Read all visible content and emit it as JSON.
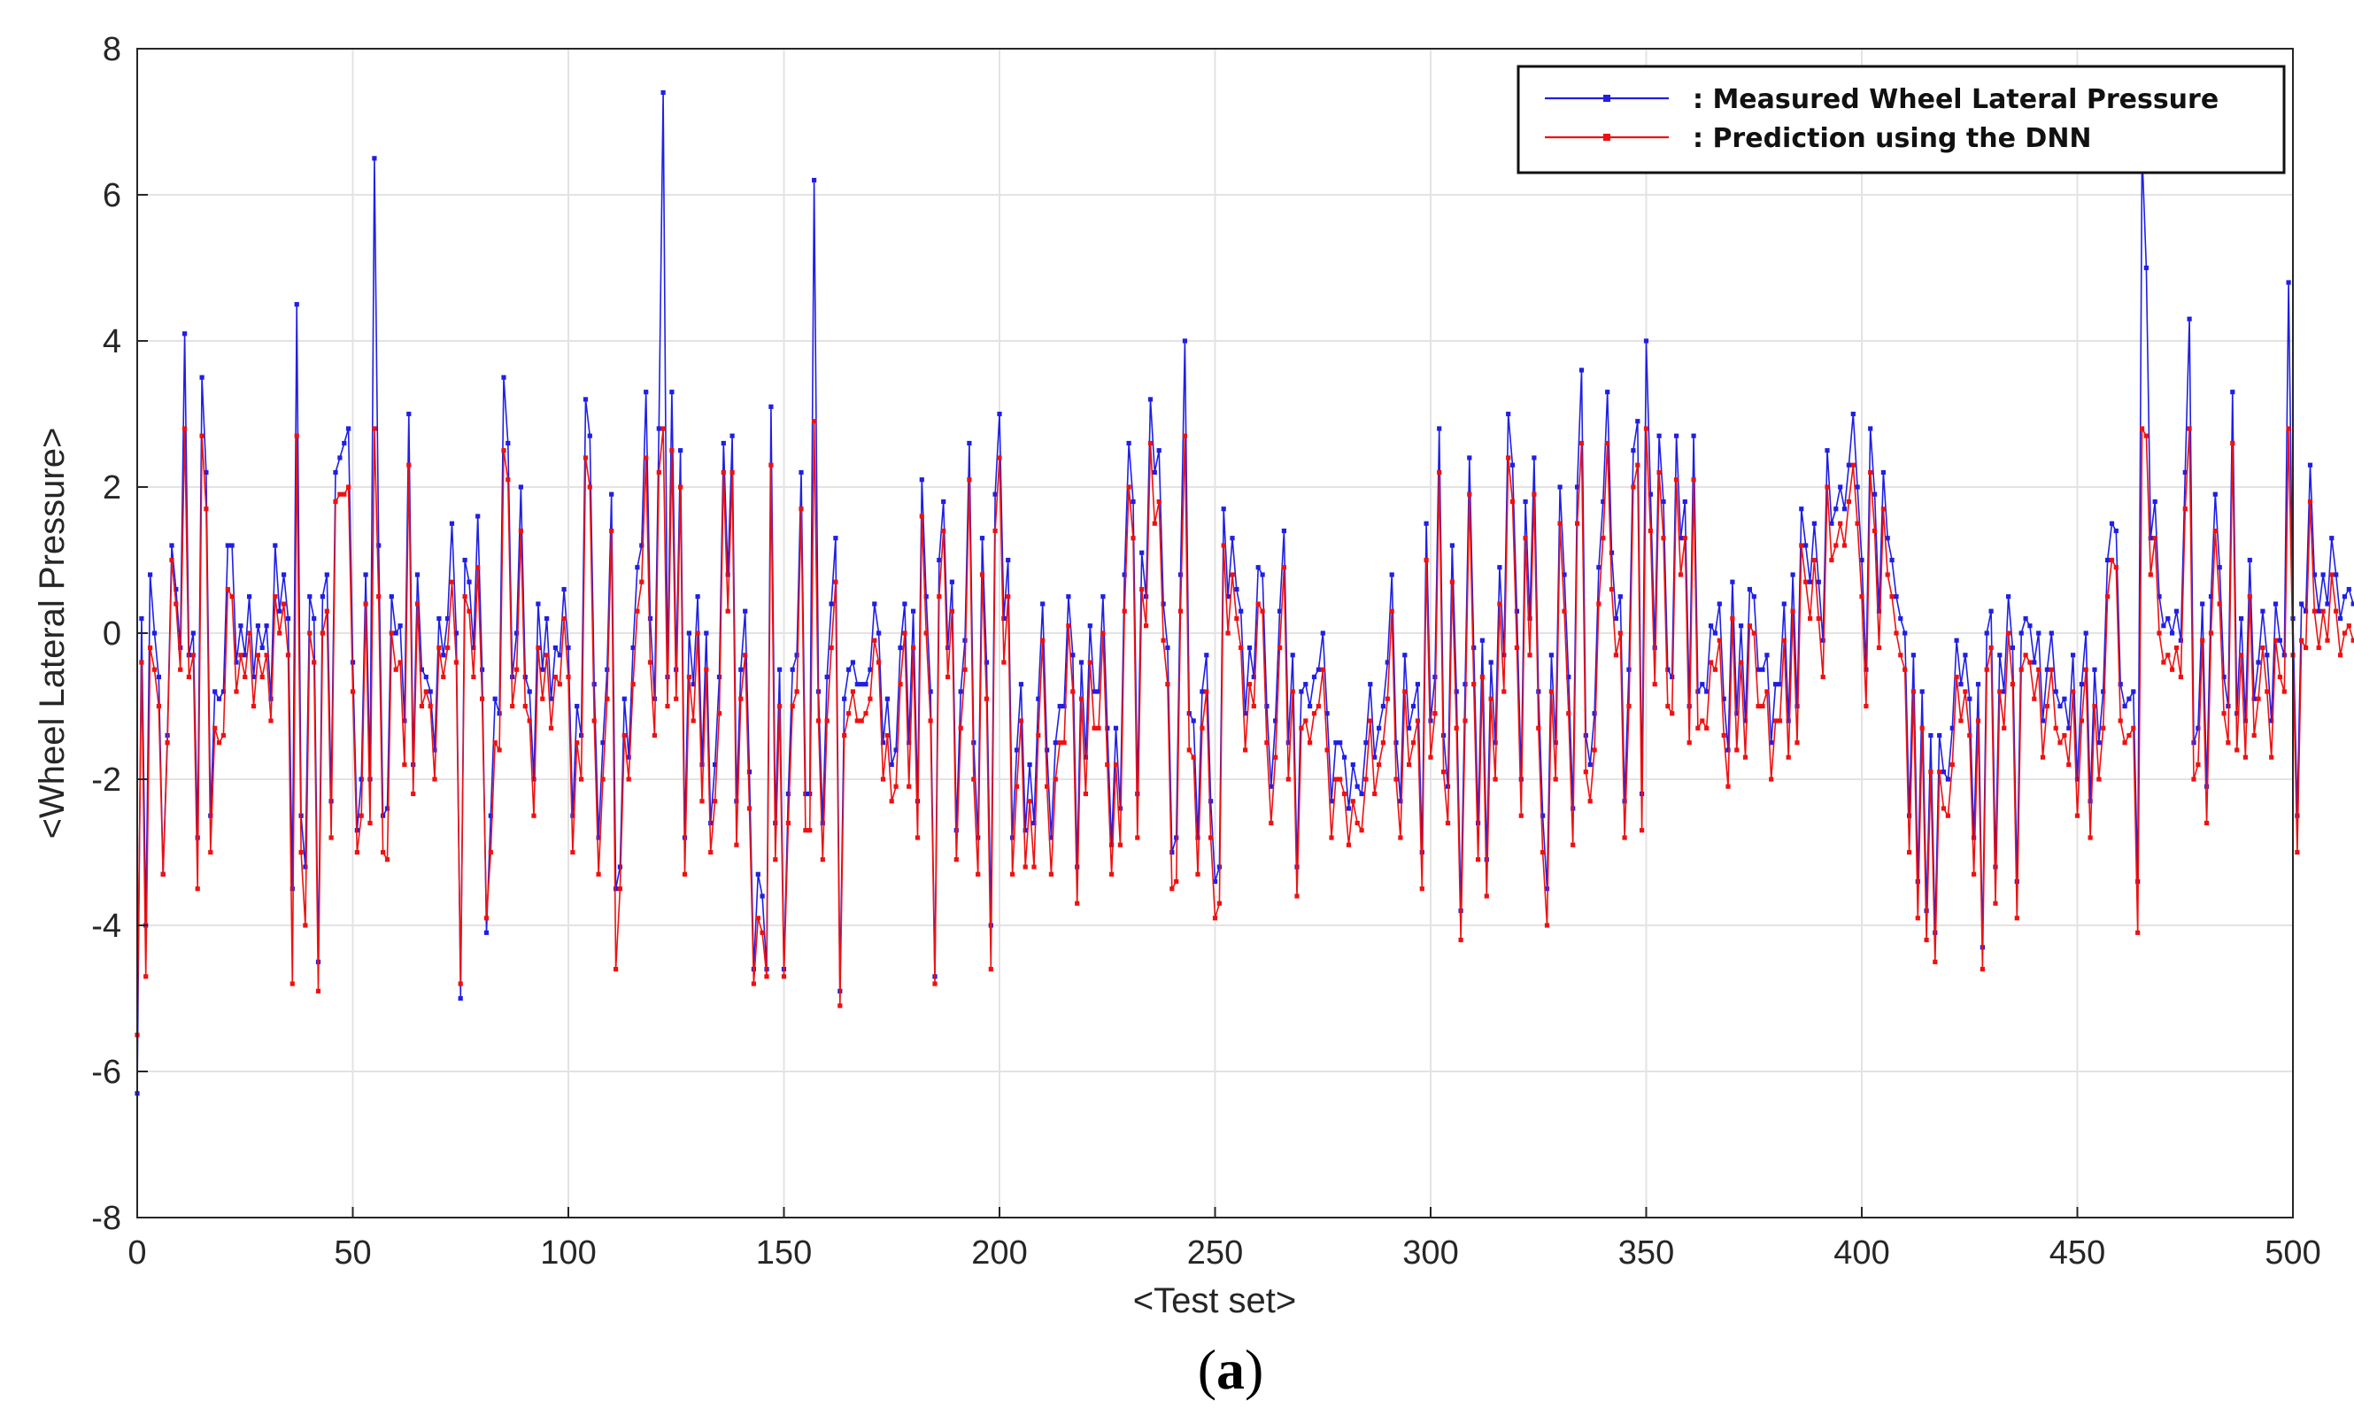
{
  "chart_data": {
    "type": "line",
    "title": "",
    "xlabel": "<Test set>",
    "ylabel": "<Wheel Lateral Pressure>",
    "xlim": [
      0,
      500
    ],
    "ylim": [
      -8,
      8
    ],
    "xticks": [
      0,
      50,
      100,
      150,
      200,
      250,
      300,
      350,
      400,
      450,
      500
    ],
    "yticks": [
      -8,
      -6,
      -4,
      -2,
      0,
      2,
      4,
      6,
      8
    ],
    "grid": true,
    "legend_position": "top-right",
    "caption": {
      "open": "(",
      "letter": "a",
      "close": ")"
    },
    "series": [
      {
        "name": ": Measured Wheel Lateral Pressure",
        "color": "#1f1fe6",
        "x_start": 0,
        "x_step": 1,
        "values": [
          -6.3,
          0.2,
          -4.0,
          0.8,
          0.0,
          -0.6,
          -3.3,
          -1.4,
          1.2,
          0.6,
          -0.2,
          4.1,
          -0.3,
          0.0,
          -2.8,
          3.5,
          2.2,
          -2.5,
          -0.8,
          -0.9,
          -0.8,
          1.2,
          1.2,
          -0.4,
          0.1,
          -0.3,
          0.5,
          -0.6,
          0.1,
          -0.2,
          0.1,
          -0.9,
          1.2,
          0.3,
          0.8,
          0.2,
          -3.5,
          4.5,
          -2.5,
          -3.2,
          0.5,
          0.2,
          -4.5,
          0.5,
          0.8,
          -2.3,
          2.2,
          2.4,
          2.6,
          2.8,
          -0.4,
          -2.7,
          -2.0,
          0.8,
          -2.0,
          6.5,
          1.2,
          -2.5,
          -2.4,
          0.5,
          0.0,
          0.1,
          -1.2,
          3.0,
          -1.8,
          0.8,
          -0.5,
          -0.6,
          -0.8,
          -1.6,
          0.2,
          -0.3,
          0.2,
          1.5,
          0.0,
          -5.0,
          1.0,
          0.7,
          -0.2,
          1.6,
          -0.5,
          -4.1,
          -2.5,
          -0.9,
          -1.1,
          3.5,
          2.6,
          -0.6,
          0.0,
          2.0,
          -0.6,
          -0.8,
          -2.0,
          0.4,
          -0.5,
          0.2,
          -0.9,
          -0.2,
          -0.3,
          0.6,
          -0.2,
          -2.5,
          -1.0,
          -1.4,
          3.2,
          2.7,
          -0.7,
          -2.8,
          -1.5,
          -0.5,
          1.9,
          -3.5,
          -3.2,
          -0.9,
          -1.7,
          -0.2,
          0.9,
          1.2,
          3.3,
          0.2,
          -0.9,
          2.8,
          7.4,
          -0.6,
          3.3,
          -0.5,
          2.5,
          -2.8,
          0.0,
          -0.7,
          0.5,
          -1.8,
          0.0,
          -2.6,
          -1.8,
          -0.6,
          2.6,
          0.8,
          2.7,
          -2.3,
          -0.5,
          0.3,
          -1.9,
          -4.6,
          -3.3,
          -3.6,
          -4.6,
          3.1,
          -2.6,
          -0.5,
          -4.6,
          -2.2,
          -0.5,
          -0.3,
          2.2,
          -2.2,
          -2.2,
          6.2,
          -0.8,
          -2.6,
          -0.6,
          0.4,
          1.3,
          -4.9,
          -0.9,
          -0.5,
          -0.4,
          -0.7,
          -0.7,
          -0.7,
          -0.5,
          0.4,
          0.0,
          -1.5,
          -0.9,
          -1.8,
          -1.6,
          -0.2,
          0.4,
          -1.5,
          0.3,
          -2.3,
          2.1,
          0.5,
          -0.8,
          -4.7,
          1.0,
          1.8,
          -0.2,
          0.7,
          -2.7,
          -0.8,
          -0.1,
          2.6,
          -1.5,
          -2.8,
          1.3,
          -0.4,
          -4.0,
          1.9,
          3.0,
          0.2,
          1.0,
          -2.8,
          -1.6,
          -0.7,
          -2.7,
          -1.8,
          -2.6,
          -0.9,
          0.4,
          -1.6,
          -2.8,
          -1.5,
          -1.0,
          -1.0,
          0.5,
          -0.3,
          -3.2,
          -0.4,
          -1.7,
          0.1,
          -0.8,
          -0.8,
          0.5,
          -1.3,
          -2.9,
          -1.3,
          -2.4,
          0.8,
          2.6,
          1.8,
          -2.2,
          1.1,
          0.5,
          3.2,
          2.2,
          2.5,
          0.4,
          -0.2,
          -3.0,
          -2.8,
          0.8,
          4.0,
          -1.1,
          -1.2,
          -2.8,
          -0.8,
          -0.3,
          -2.3,
          -3.4,
          -3.2,
          1.7,
          0.5,
          1.3,
          0.6,
          0.3,
          -1.1,
          -0.2,
          -0.6,
          0.9,
          0.8,
          -1.0,
          -2.1,
          -1.2,
          0.3,
          1.4,
          -1.5,
          -0.3,
          -3.2,
          -0.8,
          -0.7,
          -1.0,
          -0.6,
          -0.5,
          0.0,
          -1.1,
          -2.3,
          -1.5,
          -1.5,
          -1.7,
          -2.4,
          -1.8,
          -2.1,
          -2.2,
          -1.5,
          -0.7,
          -1.7,
          -1.3,
          -1.0,
          -0.4,
          0.8,
          -1.5,
          -2.3,
          -0.3,
          -1.3,
          -1.0,
          -0.7,
          -3.0,
          1.5,
          -1.2,
          -0.6,
          2.8,
          -1.4,
          -2.1,
          1.2,
          -0.8,
          -3.8,
          -0.7,
          2.4,
          -0.2,
          -2.6,
          -0.1,
          -3.1,
          -0.4,
          -1.5,
          0.9,
          -0.3,
          3.0,
          2.3,
          0.3,
          -2.0,
          1.8,
          0.2,
          2.4,
          -0.8,
          -2.5,
          -3.5,
          -0.3,
          -1.5,
          2.0,
          0.8,
          -0.6,
          -2.4,
          2.0,
          3.6,
          -1.4,
          -1.8,
          -1.1,
          0.9,
          1.8,
          3.3,
          1.1,
          0.2,
          0.5,
          -2.3,
          -0.5,
          2.5,
          2.9,
          -2.2,
          4.0,
          1.9,
          -0.2,
          2.7,
          1.8,
          -0.5,
          -0.6,
          2.7,
          1.3,
          1.8,
          -1.0,
          2.7,
          -0.8,
          -0.7,
          -0.8,
          0.1,
          0.0,
          0.4,
          -0.9,
          -1.6,
          0.7,
          -1.1,
          0.1,
          -1.2,
          0.6,
          0.5,
          -0.5,
          -0.5,
          -0.3,
          -1.5,
          -0.7,
          -0.7,
          0.4,
          -1.2,
          0.8,
          -1.0,
          1.7,
          1.2,
          0.7,
          1.5,
          0.7,
          -0.1,
          2.5,
          1.5,
          1.7,
          2.0,
          1.7,
          2.3,
          3.0,
          2.0,
          1.0,
          -0.5,
          2.8,
          1.9,
          0.3,
          2.2,
          1.3,
          1.0,
          0.5,
          0.2,
          0.0,
          -2.5,
          -0.3,
          -3.4,
          -0.8,
          -3.8,
          -1.4,
          -4.1,
          -1.4,
          -1.9,
          -2.0,
          -1.3,
          -0.1,
          -0.7,
          -0.3,
          -0.9,
          -2.8,
          -0.7,
          -4.3,
          0.0,
          0.3,
          -3.2,
          -0.3,
          -0.8,
          0.5,
          -0.2,
          -3.4,
          0.0,
          0.2,
          0.1,
          -0.4,
          0.0,
          -1.2,
          -0.5,
          0.0,
          -0.8,
          -1.0,
          -0.9,
          -1.3,
          -0.3,
          -2.0,
          -0.7,
          0.0,
          -2.3,
          -0.5,
          -1.5,
          -0.8,
          1.0,
          1.5,
          1.4,
          -0.7,
          -1.0,
          -0.9,
          -0.8,
          -3.4,
          6.6,
          5.0,
          1.3,
          1.8,
          0.5,
          0.1,
          0.2,
          0.0,
          0.3,
          -0.1,
          2.2,
          4.3,
          -1.5,
          -1.3,
          0.4,
          -2.1,
          0.5,
          1.9,
          0.9,
          -0.6,
          -1.0,
          3.3,
          -1.1,
          0.2,
          -1.2,
          1.0,
          -0.9,
          -0.4,
          0.3,
          -0.3,
          -1.2,
          0.4,
          -0.1,
          -0.3,
          4.8,
          0.2,
          -2.5,
          0.4,
          0.3,
          2.3,
          0.8,
          0.3,
          0.8,
          0.4,
          1.3,
          0.8,
          0.2,
          0.5,
          0.6,
          0.4
        ],
        "values_note": "Measured (blue) sequence, one point per test sample."
      },
      {
        "name": ": Prediction using the DNN",
        "color": "#ee1111",
        "x_start": 0,
        "x_step": 1,
        "values": [
          -5.5,
          -0.4,
          -4.7,
          -0.2,
          -0.5,
          -1.0,
          -3.3,
          -1.5,
          1.0,
          0.4,
          -0.5,
          2.8,
          -0.6,
          -0.3,
          -3.5,
          2.7,
          1.7,
          -3.0,
          -1.3,
          -1.5,
          -1.4,
          0.6,
          0.5,
          -0.8,
          -0.3,
          -0.6,
          0.0,
          -1.0,
          -0.3,
          -0.6,
          -0.3,
          -1.2,
          0.5,
          0.0,
          0.4,
          -0.3,
          -4.8,
          2.7,
          -3.0,
          -4.0,
          0.0,
          -0.4,
          -4.9,
          0.0,
          0.3,
          -2.8,
          1.8,
          1.9,
          1.9,
          2.0,
          -0.8,
          -3.0,
          -2.5,
          0.4,
          -2.6,
          2.8,
          0.5,
          -3.0,
          -3.1,
          0.0,
          -0.5,
          -0.4,
          -1.8,
          2.3,
          -2.2,
          0.4,
          -1.0,
          -0.8,
          -1.0,
          -2.0,
          -0.2,
          -0.6,
          -0.2,
          0.7,
          -0.4,
          -4.8,
          0.5,
          0.3,
          -0.6,
          0.9,
          -0.9,
          -3.9,
          -3.0,
          -1.5,
          -1.6,
          2.5,
          2.1,
          -1.0,
          -0.5,
          1.4,
          -1.0,
          -1.2,
          -2.5,
          -0.2,
          -0.9,
          -0.3,
          -1.3,
          -0.6,
          -0.7,
          0.2,
          -0.6,
          -3.0,
          -1.5,
          -2.0,
          2.4,
          2.0,
          -1.2,
          -3.3,
          -2.0,
          -0.9,
          1.4,
          -4.6,
          -3.5,
          -1.4,
          -2.0,
          -0.7,
          0.3,
          0.7,
          2.4,
          -0.4,
          -1.4,
          2.2,
          2.8,
          -1.0,
          2.5,
          -0.9,
          2.0,
          -3.3,
          -0.6,
          -1.2,
          0.0,
          -2.3,
          -0.5,
          -3.0,
          -2.3,
          -1.1,
          2.2,
          0.3,
          2.2,
          -2.9,
          -0.9,
          -0.3,
          -2.4,
          -4.8,
          -3.9,
          -4.1,
          -4.7,
          2.3,
          -3.1,
          -1.0,
          -4.7,
          -2.6,
          -1.0,
          -0.8,
          1.7,
          -2.7,
          -2.7,
          2.9,
          -1.2,
          -3.1,
          -1.2,
          -0.2,
          0.7,
          -5.1,
          -1.4,
          -1.1,
          -0.8,
          -1.2,
          -1.2,
          -1.1,
          -0.9,
          -0.1,
          -0.4,
          -2.0,
          -1.4,
          -2.3,
          -2.1,
          -0.7,
          0.0,
          -2.1,
          -0.2,
          -2.8,
          1.6,
          0.0,
          -1.2,
          -4.8,
          0.5,
          1.4,
          -0.6,
          0.3,
          -3.1,
          -1.3,
          -0.5,
          2.1,
          -2.0,
          -3.3,
          0.8,
          -0.9,
          -4.6,
          1.4,
          2.4,
          -0.4,
          0.5,
          -3.3,
          -2.1,
          -1.2,
          -3.2,
          -2.3,
          -3.2,
          -1.4,
          -0.1,
          -2.1,
          -3.3,
          -2.0,
          -1.5,
          -1.5,
          0.1,
          -0.8,
          -3.7,
          -0.9,
          -2.2,
          -0.4,
          -1.3,
          -1.3,
          0.0,
          -1.8,
          -3.3,
          -1.8,
          -2.9,
          0.3,
          2.0,
          1.3,
          -2.8,
          0.6,
          0.1,
          2.6,
          1.5,
          1.8,
          -0.1,
          -0.7,
          -3.5,
          -3.4,
          0.3,
          2.7,
          -1.6,
          -1.7,
          -3.3,
          -1.3,
          -0.8,
          -2.8,
          -3.9,
          -3.7,
          1.2,
          0.0,
          0.8,
          0.2,
          -0.2,
          -1.6,
          -0.7,
          -1.0,
          0.4,
          0.3,
          -1.5,
          -2.6,
          -1.7,
          -0.2,
          0.9,
          -2.0,
          -0.8,
          -3.6,
          -1.3,
          -1.2,
          -1.5,
          -1.1,
          -1.0,
          -0.5,
          -1.6,
          -2.8,
          -2.0,
          -2.0,
          -2.2,
          -2.9,
          -2.3,
          -2.6,
          -2.7,
          -2.0,
          -1.2,
          -2.2,
          -1.8,
          -1.5,
          -0.9,
          0.3,
          -2.0,
          -2.8,
          -0.8,
          -1.8,
          -1.5,
          -1.2,
          -3.5,
          1.0,
          -1.7,
          -1.1,
          2.2,
          -1.9,
          -2.6,
          0.7,
          -1.3,
          -4.2,
          -1.2,
          1.9,
          -0.7,
          -3.1,
          -0.6,
          -3.6,
          -0.9,
          -2.0,
          0.4,
          -0.8,
          2.4,
          1.8,
          -0.2,
          -2.5,
          1.3,
          -0.3,
          1.9,
          -1.3,
          -3.0,
          -4.0,
          -0.8,
          -2.0,
          1.5,
          0.3,
          -1.1,
          -2.9,
          1.5,
          2.6,
          -1.9,
          -2.3,
          -1.6,
          0.4,
          1.3,
          2.6,
          0.6,
          -0.3,
          0.0,
          -2.8,
          -1.0,
          2.0,
          2.3,
          -2.7,
          2.8,
          1.4,
          -0.7,
          2.2,
          1.3,
          -1.0,
          -1.1,
          2.1,
          0.8,
          1.3,
          -1.5,
          2.1,
          -1.3,
          -1.2,
          -1.3,
          -0.4,
          -0.5,
          -0.1,
          -1.4,
          -2.1,
          0.2,
          -1.6,
          -0.4,
          -1.7,
          0.1,
          0.0,
          -1.0,
          -1.0,
          -0.8,
          -2.0,
          -1.2,
          -1.2,
          -0.1,
          -1.7,
          0.3,
          -1.5,
          1.2,
          0.7,
          0.2,
          1.0,
          0.2,
          -0.6,
          2.0,
          1.0,
          1.2,
          1.5,
          1.2,
          1.8,
          2.3,
          1.5,
          0.5,
          -1.0,
          2.2,
          1.4,
          -0.2,
          1.7,
          0.8,
          0.5,
          0.0,
          -0.3,
          -0.5,
          -3.0,
          -0.8,
          -3.9,
          -1.3,
          -4.2,
          -1.9,
          -4.5,
          -1.9,
          -2.4,
          -2.5,
          -1.8,
          -0.6,
          -1.2,
          -0.8,
          -1.4,
          -3.3,
          -1.2,
          -4.6,
          -0.5,
          -0.2,
          -3.7,
          -0.8,
          -1.3,
          0.0,
          -0.7,
          -3.9,
          -0.5,
          -0.3,
          -0.4,
          -0.9,
          -0.5,
          -1.7,
          -1.0,
          -0.5,
          -1.3,
          -1.5,
          -1.4,
          -1.8,
          -0.8,
          -2.5,
          -1.2,
          -0.5,
          -2.8,
          -1.0,
          -2.0,
          -1.3,
          0.5,
          1.0,
          0.9,
          -1.2,
          -1.5,
          -1.4,
          -1.3,
          -4.1,
          2.8,
          2.7,
          0.8,
          1.3,
          0.0,
          -0.4,
          -0.3,
          -0.5,
          -0.2,
          -0.6,
          1.7,
          2.8,
          -2.0,
          -1.8,
          -0.1,
          -2.6,
          0.0,
          1.4,
          0.4,
          -1.1,
          -1.5,
          2.6,
          -1.6,
          -0.3,
          -1.7,
          0.5,
          -1.4,
          -0.9,
          -0.2,
          -0.8,
          -1.7,
          -0.1,
          -0.6,
          -0.8,
          2.8,
          -0.3,
          -3.0,
          -0.1,
          -0.2,
          1.8,
          0.3,
          -0.2,
          0.3,
          -0.1,
          0.8,
          0.3,
          -0.3,
          0.0,
          0.1,
          -0.1
        ],
        "values_note": "DNN prediction (red) sequence, one point per test sample."
      }
    ]
  }
}
